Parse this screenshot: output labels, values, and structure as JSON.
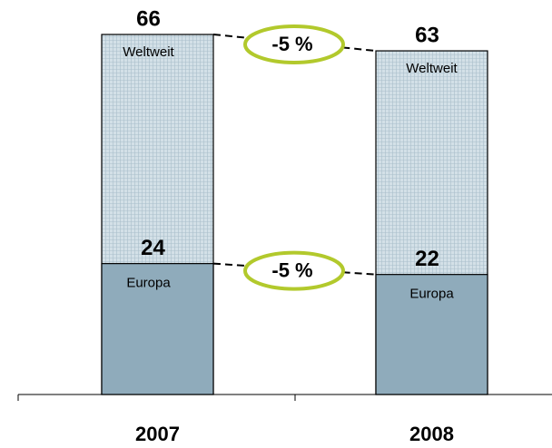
{
  "chart_data": {
    "type": "bar",
    "categories": [
      "2007",
      "2008"
    ],
    "series": [
      {
        "name": "Weltweit",
        "color": "#c9d8e1",
        "values": [
          66,
          63
        ]
      },
      {
        "name": "Europa",
        "color": "#8fabbb",
        "values": [
          24,
          22
        ]
      }
    ],
    "annotations": [
      "-5 %",
      "-5 %"
    ],
    "annotation_color": "#b2c92c"
  }
}
